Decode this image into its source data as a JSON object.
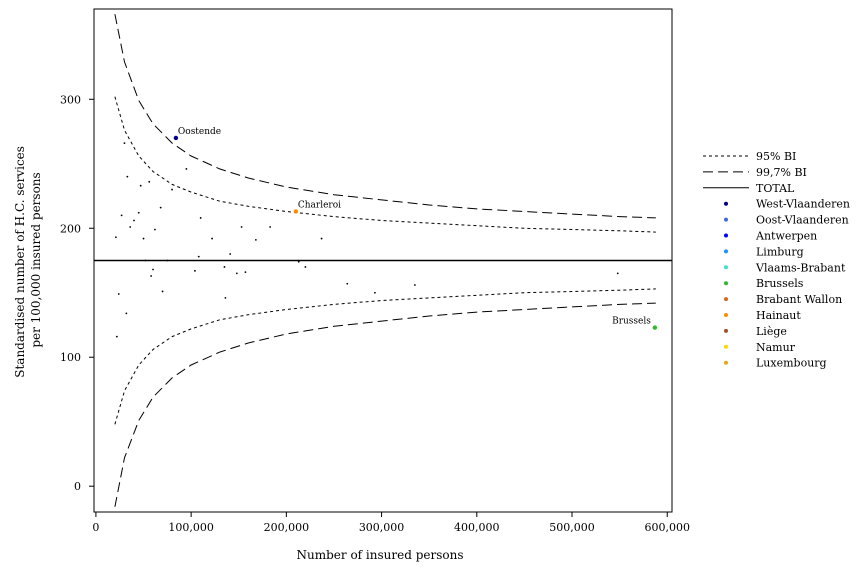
{
  "chart_data": {
    "type": "scatter",
    "xlabel": "Number of insured persons",
    "ylabel_lines": [
      "Standardised number of H.C. services",
      "per 100,000 insured persons"
    ],
    "xlim": [
      -2000,
      605000
    ],
    "ylim": [
      -20,
      370
    ],
    "x_ticks": [
      0,
      100000,
      200000,
      300000,
      400000,
      500000,
      600000
    ],
    "x_tick_labels": [
      "0",
      "100,000",
      "200,000",
      "300,000",
      "400,000",
      "500,000",
      "600,000"
    ],
    "y_ticks": [
      0,
      100,
      200,
      300
    ],
    "y_tick_labels": [
      "0",
      "100",
      "200",
      "300"
    ],
    "total_value": 175,
    "grid": false,
    "legend_position": "right",
    "legend": [
      {
        "label": "95% BI",
        "kind": "line",
        "dash": "short"
      },
      {
        "label": "99,7% BI",
        "kind": "line",
        "dash": "long"
      },
      {
        "label": "TOTAL",
        "kind": "line",
        "dash": "solid"
      },
      {
        "label": "West-Vlaanderen",
        "kind": "dot",
        "color": "#00008b"
      },
      {
        "label": "Oost-Vlaanderen",
        "kind": "dot",
        "color": "#4169e1"
      },
      {
        "label": "Antwerpen",
        "kind": "dot",
        "color": "#0000ff"
      },
      {
        "label": "Limburg",
        "kind": "dot",
        "color": "#1e90ff"
      },
      {
        "label": "Vlaams-Brabant",
        "kind": "dot",
        "color": "#40e0d0"
      },
      {
        "label": "Brussels",
        "kind": "dot",
        "color": "#2eb82e"
      },
      {
        "label": "Brabant Wallon",
        "kind": "dot",
        "color": "#d2691e"
      },
      {
        "label": "Hainaut",
        "kind": "dot",
        "color": "#ff8c00"
      },
      {
        "label": "Liège",
        "kind": "dot",
        "color": "#a0522d"
      },
      {
        "label": "Namur",
        "kind": "dot",
        "color": "#ffd700"
      },
      {
        "label": "Luxembourg",
        "kind": "dot",
        "color": "#e6a817"
      }
    ],
    "bands": {
      "ci95_upper": [
        [
          20000,
          302
        ],
        [
          30000,
          276
        ],
        [
          45000,
          256
        ],
        [
          60000,
          244
        ],
        [
          80000,
          234
        ],
        [
          100000,
          228
        ],
        [
          130000,
          221
        ],
        [
          160000,
          217
        ],
        [
          200000,
          213
        ],
        [
          250000,
          209
        ],
        [
          300000,
          206
        ],
        [
          350000,
          204
        ],
        [
          400000,
          202
        ],
        [
          450000,
          200
        ],
        [
          500000,
          199
        ],
        [
          550000,
          198
        ],
        [
          588000,
          197
        ]
      ],
      "ci95_lower": [
        [
          20000,
          48
        ],
        [
          30000,
          74
        ],
        [
          45000,
          94
        ],
        [
          60000,
          106
        ],
        [
          80000,
          116
        ],
        [
          100000,
          122
        ],
        [
          130000,
          129
        ],
        [
          160000,
          133
        ],
        [
          200000,
          137
        ],
        [
          250000,
          141
        ],
        [
          300000,
          144
        ],
        [
          350000,
          146
        ],
        [
          400000,
          148
        ],
        [
          450000,
          150
        ],
        [
          500000,
          151
        ],
        [
          550000,
          152
        ],
        [
          588000,
          153
        ]
      ],
      "ci997_upper": [
        [
          20000,
          366
        ],
        [
          30000,
          329
        ],
        [
          45000,
          299
        ],
        [
          60000,
          281
        ],
        [
          80000,
          266
        ],
        [
          100000,
          256
        ],
        [
          130000,
          246
        ],
        [
          160000,
          239
        ],
        [
          200000,
          232
        ],
        [
          250000,
          226
        ],
        [
          300000,
          222
        ],
        [
          350000,
          218
        ],
        [
          400000,
          215
        ],
        [
          450000,
          213
        ],
        [
          500000,
          211
        ],
        [
          550000,
          209
        ],
        [
          588000,
          208
        ]
      ],
      "ci997_lower": [
        [
          20000,
          -16
        ],
        [
          30000,
          22
        ],
        [
          45000,
          51
        ],
        [
          60000,
          69
        ],
        [
          80000,
          84
        ],
        [
          100000,
          94
        ],
        [
          130000,
          104
        ],
        [
          160000,
          111
        ],
        [
          200000,
          118
        ],
        [
          250000,
          124
        ],
        [
          300000,
          128
        ],
        [
          350000,
          132
        ],
        [
          400000,
          135
        ],
        [
          450000,
          137
        ],
        [
          500000,
          139
        ],
        [
          550000,
          141
        ],
        [
          588000,
          142
        ]
      ]
    },
    "points": [
      {
        "x": 21000,
        "y": 193
      },
      {
        "x": 24000,
        "y": 149
      },
      {
        "x": 22000,
        "y": 116
      },
      {
        "x": 27000,
        "y": 210
      },
      {
        "x": 30000,
        "y": 266
      },
      {
        "x": 32000,
        "y": 134
      },
      {
        "x": 33000,
        "y": 240
      },
      {
        "x": 36000,
        "y": 201
      },
      {
        "x": 40000,
        "y": 206
      },
      {
        "x": 45000,
        "y": 212
      },
      {
        "x": 47000,
        "y": 233
      },
      {
        "x": 50000,
        "y": 192
      },
      {
        "x": 52000,
        "y": 175
      },
      {
        "x": 56000,
        "y": 236
      },
      {
        "x": 58000,
        "y": 163
      },
      {
        "x": 60000,
        "y": 168
      },
      {
        "x": 62000,
        "y": 199
      },
      {
        "x": 68000,
        "y": 216
      },
      {
        "x": 70000,
        "y": 151
      },
      {
        "x": 75000,
        "y": 175
      },
      {
        "x": 80000,
        "y": 230
      },
      {
        "x": 95000,
        "y": 246
      },
      {
        "x": 104000,
        "y": 167
      },
      {
        "x": 108000,
        "y": 178
      },
      {
        "x": 110000,
        "y": 208
      },
      {
        "x": 122000,
        "y": 192
      },
      {
        "x": 135000,
        "y": 170
      },
      {
        "x": 136000,
        "y": 146
      },
      {
        "x": 141000,
        "y": 180
      },
      {
        "x": 148000,
        "y": 165
      },
      {
        "x": 153000,
        "y": 201
      },
      {
        "x": 157000,
        "y": 166
      },
      {
        "x": 168000,
        "y": 191
      },
      {
        "x": 183000,
        "y": 201
      },
      {
        "x": 213000,
        "y": 174
      },
      {
        "x": 220000,
        "y": 170
      },
      {
        "x": 237000,
        "y": 192
      },
      {
        "x": 264000,
        "y": 157
      },
      {
        "x": 293000,
        "y": 150
      },
      {
        "x": 335000,
        "y": 156
      },
      {
        "x": 548000,
        "y": 165
      }
    ],
    "highlighted": [
      {
        "label": "Oostende",
        "x": 84000,
        "y": 270,
        "color": "#00008b",
        "label_pos": "right-above"
      },
      {
        "label": "Charleroi",
        "x": 210000,
        "y": 213,
        "color": "#ff8c00",
        "label_pos": "right-above"
      },
      {
        "label": "Brussels",
        "x": 587000,
        "y": 123,
        "color": "#2eb82e",
        "label_pos": "left-above"
      }
    ]
  }
}
